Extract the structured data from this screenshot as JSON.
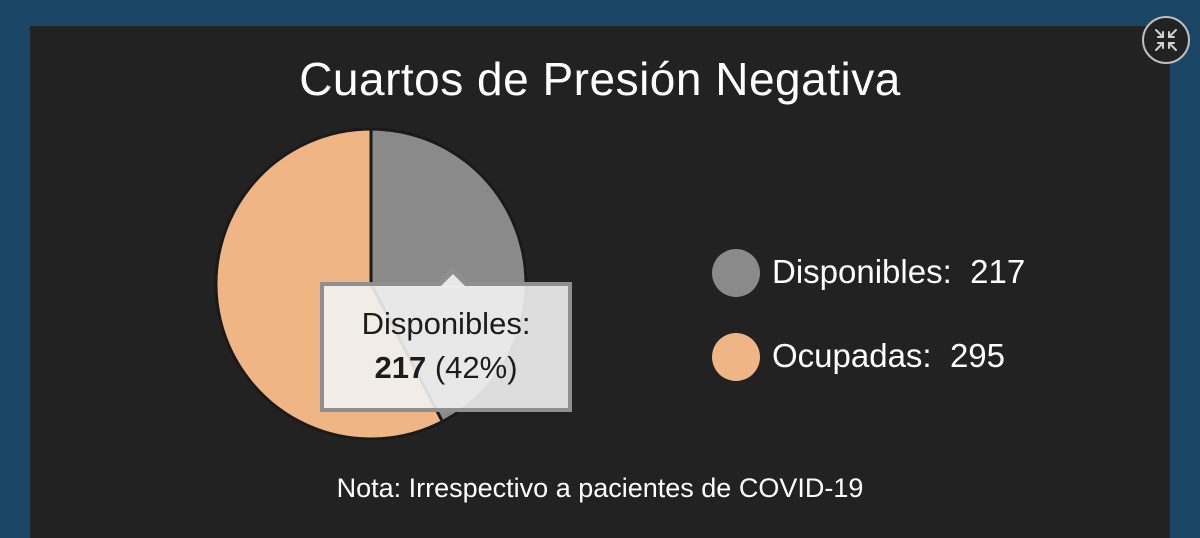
{
  "chart_data": {
    "type": "pie",
    "title": "Cuartos de Presión Negativa",
    "slices": [
      {
        "label": "Disponibles",
        "value": 217,
        "color": "#8a8a8a"
      },
      {
        "label": "Ocupadas",
        "value": 295,
        "color": "#efb584"
      }
    ],
    "legend": {
      "placement": "right",
      "items": [
        {
          "label": "Disponibles:",
          "value": "217"
        },
        {
          "label": "Ocupadas:",
          "value": "295"
        }
      ]
    },
    "tooltip": {
      "label": "Disponibles:",
      "value": "217",
      "percent": "(42%)"
    },
    "note": "Nota: Irrespectivo a pacientes de COVID-19"
  },
  "controls": {
    "collapse_icon": "collapse-icon"
  },
  "colors": {
    "background": "#1b4565",
    "panel": "#222222",
    "text": "#ffffff"
  }
}
